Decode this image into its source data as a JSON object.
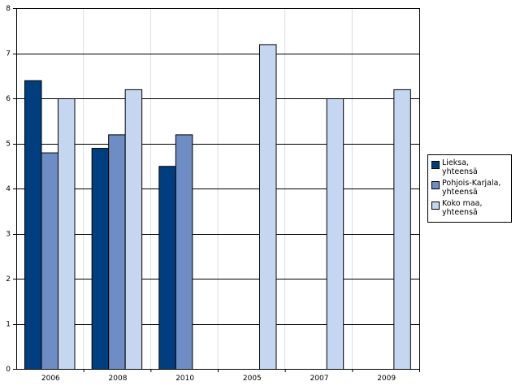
{
  "chart_data": {
    "type": "bar",
    "categories": [
      "2006",
      "2008",
      "2010",
      "2005",
      "2007",
      "2009"
    ],
    "series": [
      {
        "name": "Lieksa,\nyhteensä",
        "color": "#003f7f",
        "values": [
          6.4,
          4.9,
          4.5,
          null,
          null,
          null
        ]
      },
      {
        "name": "Pohjois-Karjala,\nyhteensä",
        "color": "#6d8dc4",
        "values": [
          4.8,
          5.2,
          5.2,
          null,
          null,
          null
        ]
      },
      {
        "name": "Koko maa,\nyhteensä",
        "color": "#c5d7f0",
        "values": [
          6.0,
          6.2,
          null,
          7.2,
          6.0,
          6.2
        ]
      }
    ],
    "ylim": [
      0,
      8
    ],
    "yticks": [
      "0",
      "1",
      "2",
      "3",
      "4",
      "5",
      "6",
      "7",
      "8"
    ],
    "grid": true,
    "legend_position": "right"
  }
}
